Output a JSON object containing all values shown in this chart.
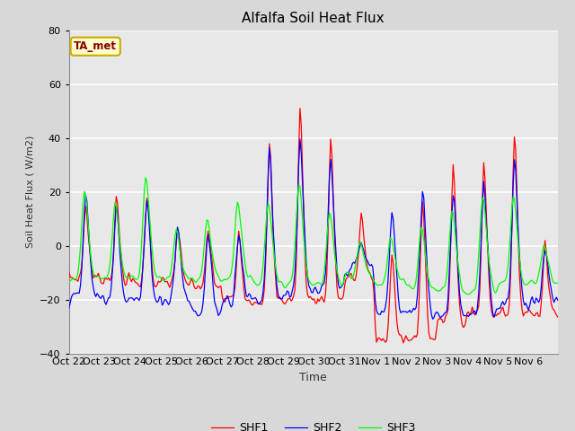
{
  "title": "Alfalfa Soil Heat Flux",
  "ylabel": "Soil Heat Flux (W/m2)",
  "xlabel": "Time",
  "ylim": [
    -40,
    80
  ],
  "outer_bg": "#d8d8d8",
  "plot_bg_color": "#e8e8e8",
  "grid_color": "white",
  "annotation_text": "TA_met",
  "annotation_bg": "#ffffcc",
  "annotation_border": "#ccaa00",
  "annotation_text_color": "#880000",
  "legend_entries": [
    "SHF1",
    "SHF2",
    "SHF3"
  ],
  "colors": [
    "red",
    "blue",
    "lime"
  ],
  "xtick_labels": [
    "Oct 22",
    "Oct 23",
    "Oct 24",
    "Oct 25",
    "Oct 26",
    "Oct 27",
    "Oct 28",
    "Oct 29",
    "Oct 30",
    "Oct 31",
    "Nov 1",
    "Nov 2",
    "Nov 3",
    "Nov 4",
    "Nov 5",
    "Nov 6"
  ],
  "tick_positions": [
    0,
    24,
    48,
    72,
    96,
    120,
    144,
    168,
    192,
    216,
    240,
    264,
    288,
    312,
    336,
    360
  ]
}
